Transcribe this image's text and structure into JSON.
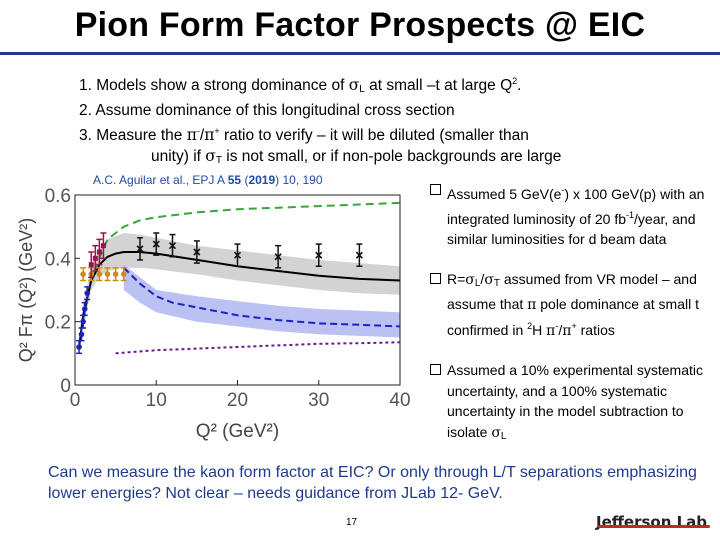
{
  "title": "Pion Form Factor Prospects @ EIC",
  "points": {
    "p1_a": "1. Models show a strong dominance of ",
    "p1_sub": "L",
    "p1_b": " at small –t at large Q",
    "p1_sup": "2",
    "p1_c": ".",
    "p2": "2. Assume dominance of this longitudinal cross section",
    "p3_a": "3. Measure the ",
    "p3_pi1": "π",
    "p3_sup1": "-",
    "p3_slash": "/",
    "p3_pi2": "π",
    "p3_sup2": "+",
    "p3_b": " ratio to verify – it will be diluted (smaller than",
    "p3_c": "unity) if ",
    "p3_sub": "T",
    "p3_d": " is not small, or if non-pole backgrounds are large",
    "sigma": "σ"
  },
  "citation": {
    "text": "A.C. Aguilar et al., EPJ A ",
    "volume": "55",
    "open": " (",
    "year": "2019",
    "close": ") 10, 190"
  },
  "bullets": {
    "b1_a": "Assumed 5 GeV(e",
    "b1_sup1": "-",
    "b1_b": ") x 100 GeV(p) with an integrated luminosity of 20 fb",
    "b1_sup2": "-1",
    "b1_c": "/year, and similar luminosities for d beam data",
    "b2_a": "R=",
    "b2_sub1": "L",
    "b2_slash": "/",
    "b2_sub2": "T",
    "b2_b": " assumed from VR model – and assume that ",
    "b2_pi": "π",
    "b2_c": " pole dominance at small t confirmed in ",
    "b2_sup": "2",
    "b2_d": "H ",
    "b2_sup3": "-",
    "b2_sup4": "+",
    "b2_e": " ratios",
    "b3_a": "Assumed a 10% experimental systematic uncertainty, and a 100% systematic uncertainty in the model subtraction to isolate ",
    "b3_sub": "L"
  },
  "bottom_text": "Can we measure the kaon form factor at EIC? Or only through L/T separations emphasizing lower energies? Not clear – needs guidance from JLab 12- GeV.",
  "page_number": "17",
  "logo_text": "Jefferson Lab",
  "colors": {
    "title_rule": "#1f3a93",
    "citation": "#1f4aa8",
    "bottom_text": "#1f3a8f",
    "band_gray": "#c8c8c8",
    "band_blue": "#aab2f0",
    "curve_green": "#3aa63a",
    "curve_dashed_blue": "#2020c0",
    "curve_purple": "#6a1a8a",
    "eic_points": "#111111",
    "jlab_gold": "#c8901a"
  },
  "chart_data": {
    "type": "line",
    "xlabel": "Q² (GeV²)",
    "ylabel": "Q² Fπ (Q²) (GeV²)",
    "xlim": [
      0,
      40
    ],
    "ylim": [
      0,
      0.6
    ],
    "x_ticks": [
      0,
      10,
      20,
      30,
      40
    ],
    "y_ticks": [
      0,
      0.2,
      0.4,
      0.6
    ],
    "y_tick_labels": [
      "0",
      "0.2",
      "0.4",
      "0.6"
    ],
    "grid": false,
    "series": [
      {
        "style": "solid-black",
        "x": [
          0.5,
          1,
          2,
          3,
          4,
          5,
          6,
          8,
          10,
          15,
          20,
          25,
          30,
          35,
          40
        ],
        "y": [
          0.12,
          0.22,
          0.33,
          0.38,
          0.405,
          0.415,
          0.42,
          0.42,
          0.415,
          0.395,
          0.375,
          0.36,
          0.345,
          0.335,
          0.33
        ]
      },
      {
        "style": "gray-band-upper",
        "x": [
          1,
          2,
          3,
          4,
          6,
          8,
          10,
          15,
          20,
          25,
          30,
          35,
          40
        ],
        "y": [
          0.26,
          0.37,
          0.43,
          0.46,
          0.48,
          0.475,
          0.465,
          0.44,
          0.425,
          0.41,
          0.395,
          0.385,
          0.375
        ]
      },
      {
        "style": "gray-band-lower",
        "x": [
          1,
          2,
          3,
          4,
          6,
          8,
          10,
          15,
          20,
          25,
          30,
          35,
          40
        ],
        "y": [
          0.18,
          0.3,
          0.34,
          0.36,
          0.37,
          0.37,
          0.365,
          0.35,
          0.33,
          0.315,
          0.3,
          0.29,
          0.285
        ]
      },
      {
        "style": "green-dashed",
        "x": [
          1,
          2,
          4,
          6,
          8,
          10,
          15,
          20,
          25,
          30,
          35,
          40
        ],
        "y": [
          0.2,
          0.34,
          0.46,
          0.5,
          0.52,
          0.53,
          0.545,
          0.555,
          0.56,
          0.565,
          0.57,
          0.575
        ]
      },
      {
        "style": "blue-dashed",
        "x": [
          6,
          8,
          10,
          12,
          15,
          20,
          25,
          30,
          35,
          40
        ],
        "y": [
          0.37,
          0.32,
          0.28,
          0.26,
          0.245,
          0.22,
          0.205,
          0.195,
          0.19,
          0.185
        ]
      },
      {
        "style": "blue-band-upper",
        "x": [
          6,
          8,
          10,
          15,
          20,
          25,
          30,
          35,
          40
        ],
        "y": [
          0.38,
          0.34,
          0.3,
          0.28,
          0.265,
          0.25,
          0.24,
          0.235,
          0.23
        ]
      },
      {
        "style": "blue-band-lower",
        "x": [
          6,
          8,
          10,
          15,
          20,
          25,
          30,
          35,
          40
        ],
        "y": [
          0.3,
          0.26,
          0.23,
          0.2,
          0.185,
          0.17,
          0.16,
          0.155,
          0.15
        ]
      },
      {
        "style": "purple-dotted",
        "x": [
          5,
          10,
          15,
          20,
          25,
          30,
          35,
          40
        ],
        "y": [
          0.1,
          0.11,
          0.115,
          0.12,
          0.125,
          0.13,
          0.132,
          0.135
        ]
      }
    ],
    "points": {
      "eic_projection": {
        "x": [
          8,
          10,
          12,
          15,
          20,
          25,
          30,
          35
        ],
        "y": [
          0.43,
          0.445,
          0.44,
          0.42,
          0.41,
          0.405,
          0.41,
          0.41
        ],
        "err": [
          0.035,
          0.035,
          0.035,
          0.035,
          0.035,
          0.035,
          0.035,
          0.035
        ]
      },
      "jlab12_projection": {
        "x": [
          1,
          2,
          3,
          4,
          5,
          6
        ],
        "y": [
          0.35,
          0.35,
          0.35,
          0.35,
          0.35,
          0.35
        ],
        "err": [
          0.02,
          0.02,
          0.02,
          0.02,
          0.02,
          0.02
        ]
      },
      "existing_data_red": {
        "x": [
          2,
          2.5,
          3,
          3.5
        ],
        "y": [
          0.38,
          0.4,
          0.42,
          0.44
        ],
        "err": [
          0.04,
          0.04,
          0.04,
          0.04
        ]
      },
      "existing_data_blue": {
        "x": [
          0.5,
          0.8,
          1.0,
          1.2,
          1.5
        ],
        "y": [
          0.12,
          0.16,
          0.2,
          0.24,
          0.29
        ],
        "err": [
          0.02,
          0.02,
          0.02,
          0.02,
          0.02
        ]
      }
    }
  }
}
